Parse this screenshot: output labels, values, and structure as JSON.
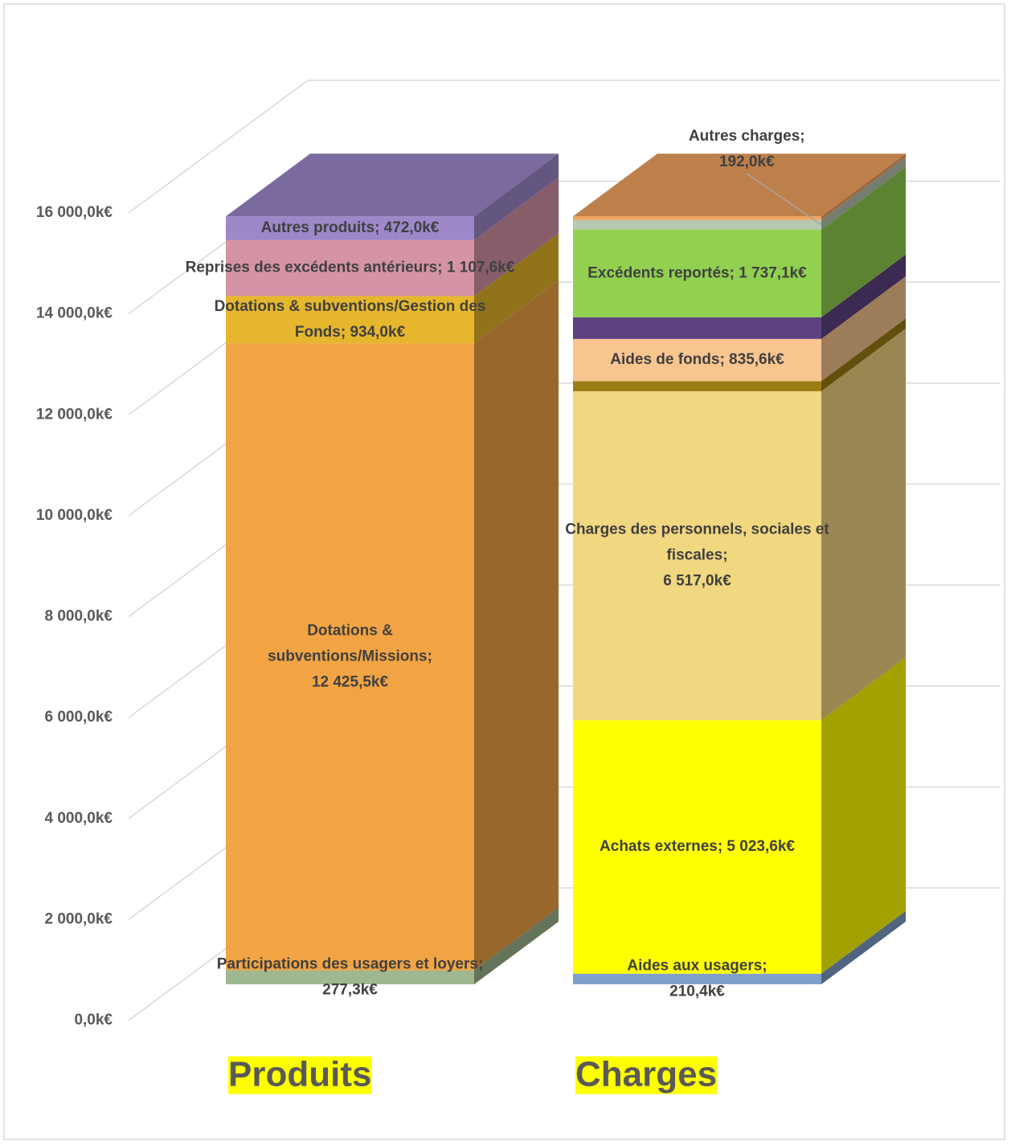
{
  "chart_data": {
    "type": "stacked-bar-3d",
    "ylim": [
      0,
      16000
    ],
    "yticks": [
      {
        "value": 0,
        "label": "0,0k€"
      },
      {
        "value": 2000,
        "label": "2 000,0k€"
      },
      {
        "value": 4000,
        "label": "4 000,0k€"
      },
      {
        "value": 6000,
        "label": "6 000,0k€"
      },
      {
        "value": 8000,
        "label": "8 000,0k€"
      },
      {
        "value": 10000,
        "label": "10 000,0k€"
      },
      {
        "value": 12000,
        "label": "12 000,0k€"
      },
      {
        "value": 14000,
        "label": "14 000,0k€"
      },
      {
        "value": 16000,
        "label": "16 000,0k€"
      }
    ],
    "grid": true,
    "bars": [
      {
        "category": "Produits",
        "segments": [
          {
            "value": 277.3,
            "color": "#9fb88f",
            "label": [
              "Participations des usagers et loyers;",
              "277,3k€"
            ]
          },
          {
            "value": 12425.5,
            "color": "#f2a444",
            "label": [
              "Dotations &",
              "subventions/Missions;",
              "12 425,5k€"
            ]
          },
          {
            "value": 934.0,
            "color": "#e6b72d",
            "label": [
              "Dotations & subventions/Gestion des",
              "Fonds;  934,0k€"
            ]
          },
          {
            "value": 1107.6,
            "color": "#d594a6",
            "label": [
              "Reprises des excédents antérieurs; 1 107,6k€"
            ]
          },
          {
            "value": 472.0,
            "color": "#9d88c9",
            "label": [
              "Autres produits;  472,0k€"
            ]
          }
        ]
      },
      {
        "category": "Charges",
        "segments": [
          {
            "value": 210.4,
            "color": "#7f9fcb",
            "label": [
              "Aides aux usagers;",
              "210,4k€"
            ]
          },
          {
            "value": 5023.6,
            "color": "#ffff00",
            "label": [
              "Achats externes; 5 023,6k€"
            ]
          },
          {
            "value": 6517.0,
            "color": "#f1d780",
            "label": [
              "Charges des personnels, sociales et",
              "fiscales;",
              "6 517,0k€"
            ]
          },
          {
            "value": 200,
            "color": "#9a7d12"
          },
          {
            "value": 835.6,
            "color": "#f9c58f",
            "label": [
              "Aides de fonds;  835,6k€"
            ]
          },
          {
            "value": 430,
            "color": "#5d4281"
          },
          {
            "value": 1737.1,
            "color": "#92d050",
            "label": [
              "Excédents reportés; 1 737,1k€"
            ]
          },
          {
            "value": 192.0,
            "color": "#b8c7b0",
            "label": [
              "Autres charges;",
              "192,0k€"
            ]
          },
          {
            "value": 71,
            "color": "#f4a460"
          }
        ]
      }
    ]
  }
}
